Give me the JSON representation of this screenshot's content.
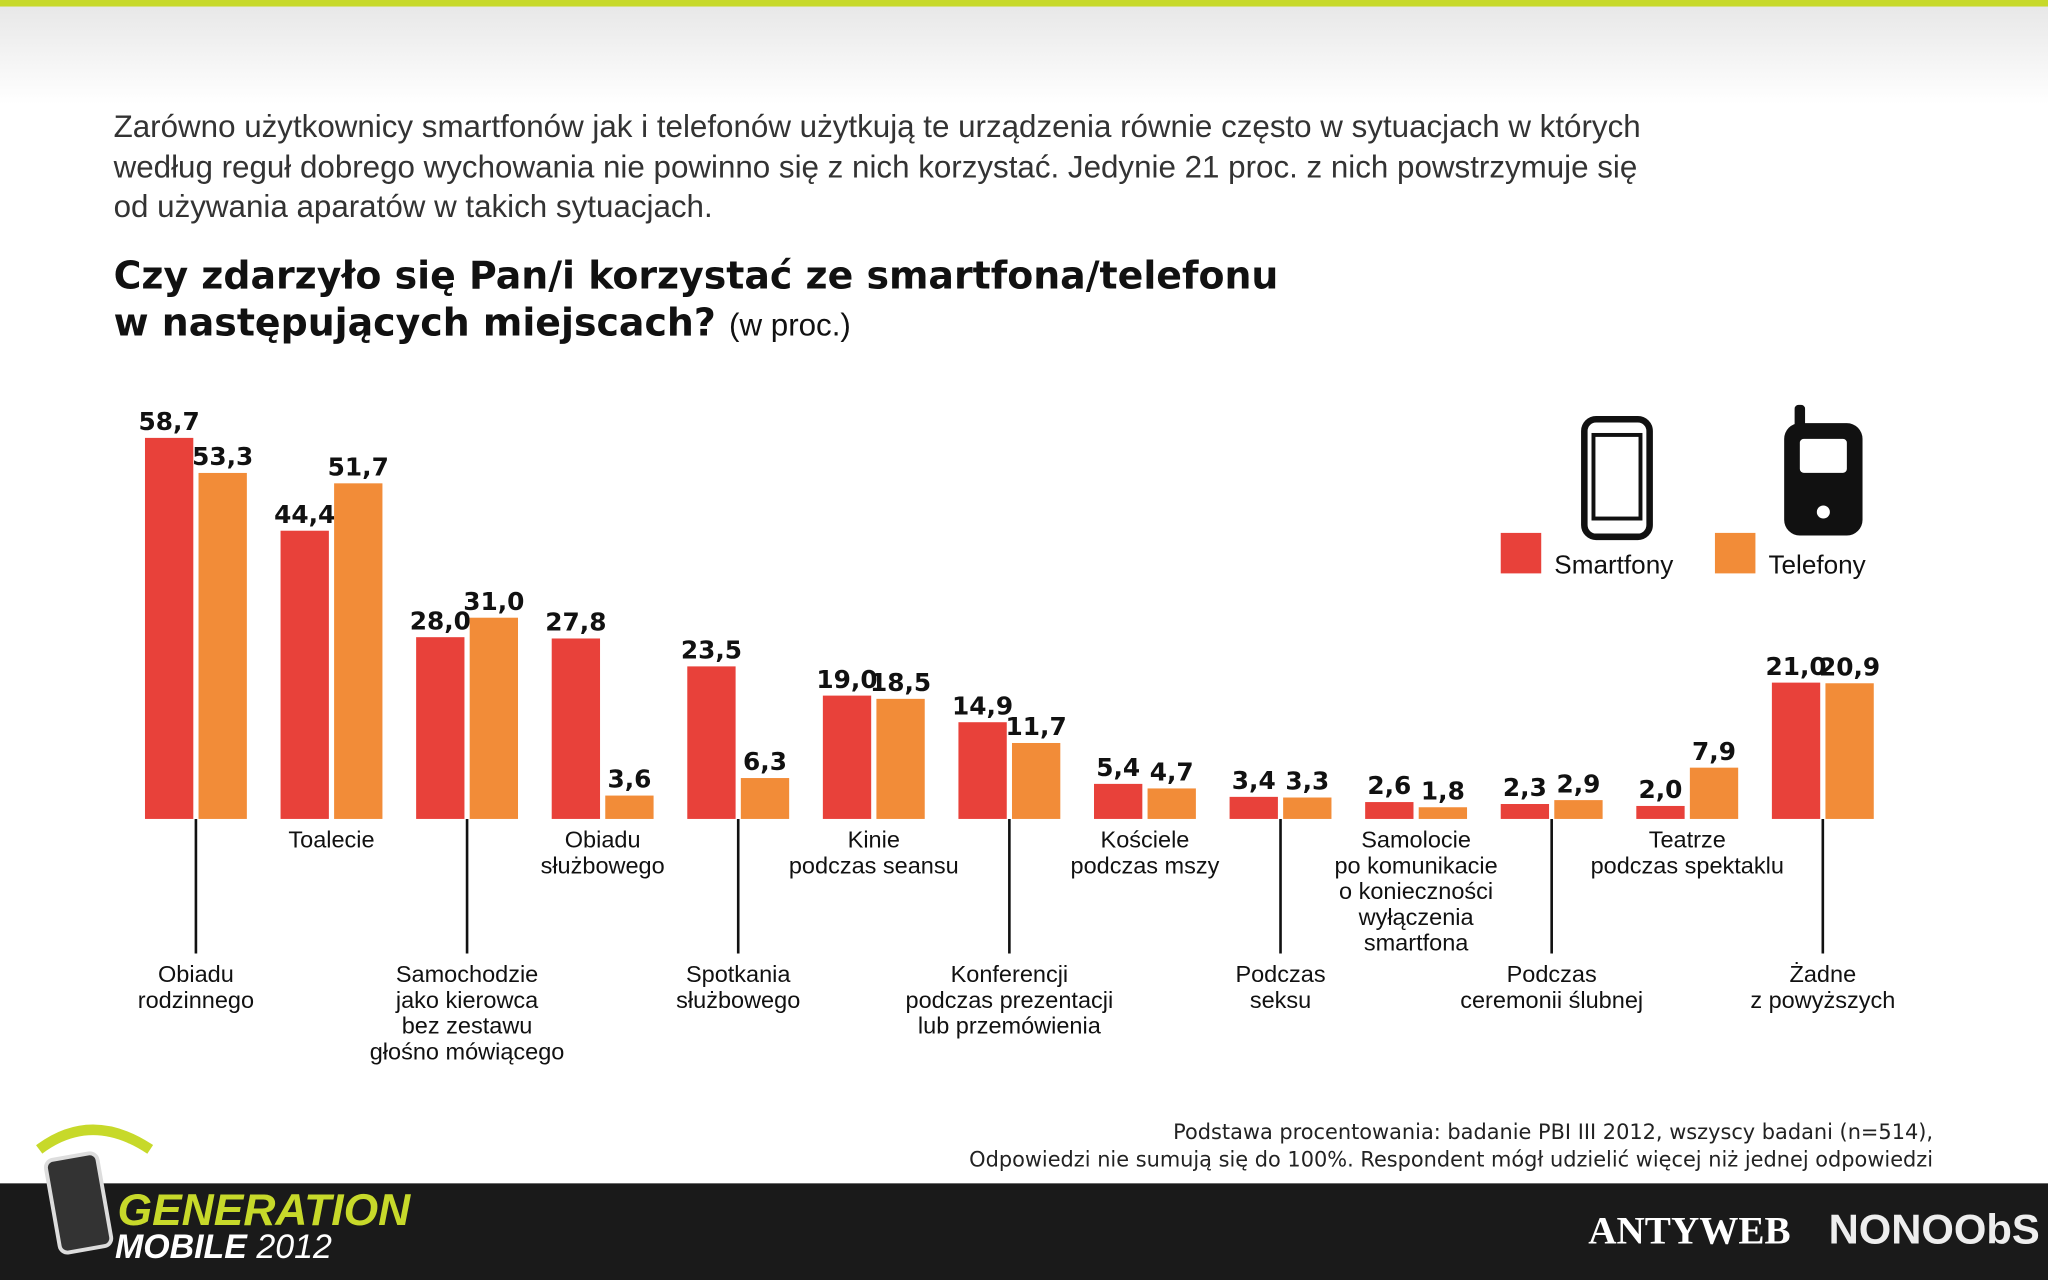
{
  "intro": [
    "Zarówno użytkownicy smartfonów jak i telefonów użytkują te urządzenia równie często w sytuacjach w których",
    "według reguł dobrego wychowania nie powinno się z nich korzystać. Jedynie 21 proc. z nich powstrzymuje się",
    "od używania aparatów w takich sytuacjach."
  ],
  "chart_data": {
    "type": "bar",
    "title": [
      "Czy zdarzyło się Pan/i korzystać ze smartfona/telefonu",
      "w następujących miejscach?"
    ],
    "subtitle": "(w proc.)",
    "categories": [
      "Obiadu\nrodzinnego",
      "Toalecie",
      "Samochodzie\njako kierowca\nbez zestawu\ngłośno mówiącego",
      "Obiadu\nsłużbowego",
      "Spotkania\nsłużbowego",
      "Kinie\npodczas seansu",
      "Konferencji\npodczas prezentacji\nlub przemówienia",
      "Kościele\npodczas mszy",
      "Podczas\nseksu",
      "Samolocie\npo komunikacie\no konieczności\nwyłączenia\nsmartfona",
      "Podczas\nceremonii ślubnej",
      "Teatrze\npodczas spektaklu",
      "Żadne\nz powyższych"
    ],
    "series": [
      {
        "name": "Smartfony",
        "color": "#e8413a",
        "values": [
          58.7,
          44.4,
          28.0,
          27.8,
          23.5,
          19.0,
          14.9,
          5.4,
          3.4,
          2.6,
          2.3,
          2.0,
          21.0
        ],
        "value_labels": [
          "58,7",
          "44,4",
          "28,0",
          "27,8",
          "23,5",
          "19,0",
          "14,9",
          "5,4",
          "3,4",
          "2,6",
          "2,3",
          "2,0",
          "21,0"
        ]
      },
      {
        "name": "Telefony",
        "color": "#f28c38",
        "values": [
          53.3,
          51.7,
          31.0,
          3.6,
          6.3,
          18.5,
          11.7,
          4.7,
          3.3,
          1.8,
          2.9,
          7.9,
          20.9
        ],
        "value_labels": [
          "53,3",
          "51,7",
          "31,0",
          "3,6",
          "6,3",
          "18,5",
          "11,7",
          "4,7",
          "3,3",
          "1,8",
          "2,9",
          "7,9",
          "20,9"
        ]
      }
    ]
  },
  "footnote": [
    "Podstawa procentowania: badanie PBI III 2012, wszyscy badani (n=514),",
    "Odpowiedzi nie sumują się do 100%. Respondent mógł udzielić więcej niż jednej odpowiedzi"
  ],
  "brand": {
    "generation": "GENERATION",
    "mobile": "MOBILE",
    "year": "2012"
  },
  "partners": [
    "ANTYWEB",
    "NONOObS"
  ]
}
